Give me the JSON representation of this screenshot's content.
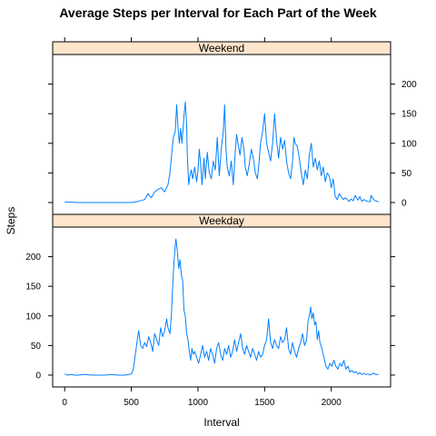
{
  "colors": {
    "strip_fill": "#FFE5CC",
    "line": "#0080FF",
    "frame": "#000000"
  },
  "chart_data": {
    "type": "line",
    "title": "Average Steps per Interval for Each Part of the Week",
    "xlabel": "Interval",
    "ylabel": "Steps",
    "xlim": [
      -90,
      2445
    ],
    "ylim": [
      -20,
      250
    ],
    "x_ticks": [
      0,
      500,
      1000,
      1500,
      2000
    ],
    "y_ticks": [
      0,
      50,
      100,
      150,
      200
    ],
    "layout": "two panels stacked, shared x axis; left y ticks on bottom panel, right y ticks on top panel",
    "grid": false,
    "panels": [
      {
        "name": "Weekend",
        "points": [
          [
            0,
            1
          ],
          [
            100,
            0
          ],
          [
            200,
            0
          ],
          [
            300,
            0
          ],
          [
            400,
            0
          ],
          [
            500,
            0
          ],
          [
            550,
            2
          ],
          [
            600,
            5
          ],
          [
            625,
            15
          ],
          [
            650,
            8
          ],
          [
            675,
            18
          ],
          [
            700,
            22
          ],
          [
            725,
            25
          ],
          [
            750,
            18
          ],
          [
            775,
            30
          ],
          [
            790,
            50
          ],
          [
            800,
            75
          ],
          [
            815,
            110
          ],
          [
            830,
            120
          ],
          [
            840,
            165
          ],
          [
            850,
            130
          ],
          [
            860,
            100
          ],
          [
            870,
            125
          ],
          [
            880,
            100
          ],
          [
            895,
            145
          ],
          [
            905,
            170
          ],
          [
            915,
            130
          ],
          [
            920,
            80
          ],
          [
            930,
            30
          ],
          [
            940,
            45
          ],
          [
            950,
            55
          ],
          [
            960,
            40
          ],
          [
            975,
            60
          ],
          [
            990,
            35
          ],
          [
            1000,
            55
          ],
          [
            1010,
            90
          ],
          [
            1020,
            65
          ],
          [
            1030,
            30
          ],
          [
            1045,
            75
          ],
          [
            1055,
            40
          ],
          [
            1070,
            85
          ],
          [
            1085,
            50
          ],
          [
            1100,
            40
          ],
          [
            1115,
            70
          ],
          [
            1130,
            55
          ],
          [
            1145,
            110
          ],
          [
            1160,
            45
          ],
          [
            1175,
            90
          ],
          [
            1190,
            120
          ],
          [
            1200,
            165
          ],
          [
            1210,
            90
          ],
          [
            1220,
            60
          ],
          [
            1235,
            45
          ],
          [
            1250,
            70
          ],
          [
            1265,
            30
          ],
          [
            1280,
            85
          ],
          [
            1290,
            115
          ],
          [
            1300,
            100
          ],
          [
            1315,
            80
          ],
          [
            1330,
            110
          ],
          [
            1345,
            90
          ],
          [
            1355,
            60
          ],
          [
            1370,
            45
          ],
          [
            1385,
            65
          ],
          [
            1400,
            90
          ],
          [
            1415,
            75
          ],
          [
            1430,
            50
          ],
          [
            1445,
            40
          ],
          [
            1455,
            60
          ],
          [
            1470,
            100
          ],
          [
            1485,
            120
          ],
          [
            1500,
            150
          ],
          [
            1515,
            100
          ],
          [
            1530,
            85
          ],
          [
            1545,
            70
          ],
          [
            1560,
            100
          ],
          [
            1575,
            150
          ],
          [
            1590,
            105
          ],
          [
            1605,
            75
          ],
          [
            1620,
            110
          ],
          [
            1635,
            90
          ],
          [
            1650,
            105
          ],
          [
            1665,
            70
          ],
          [
            1680,
            50
          ],
          [
            1695,
            40
          ],
          [
            1710,
            70
          ],
          [
            1720,
            110
          ],
          [
            1730,
            100
          ],
          [
            1745,
            95
          ],
          [
            1760,
            75
          ],
          [
            1775,
            50
          ],
          [
            1790,
            30
          ],
          [
            1805,
            55
          ],
          [
            1820,
            40
          ],
          [
            1835,
            80
          ],
          [
            1850,
            100
          ],
          [
            1865,
            60
          ],
          [
            1880,
            75
          ],
          [
            1895,
            55
          ],
          [
            1910,
            70
          ],
          [
            1925,
            45
          ],
          [
            1940,
            60
          ],
          [
            1955,
            35
          ],
          [
            1970,
            50
          ],
          [
            1985,
            45
          ],
          [
            2000,
            25
          ],
          [
            2015,
            40
          ],
          [
            2030,
            10
          ],
          [
            2045,
            5
          ],
          [
            2060,
            15
          ],
          [
            2075,
            10
          ],
          [
            2090,
            5
          ],
          [
            2105,
            8
          ],
          [
            2120,
            5
          ],
          [
            2135,
            2
          ],
          [
            2150,
            6
          ],
          [
            2165,
            3
          ],
          [
            2180,
            12
          ],
          [
            2200,
            4
          ],
          [
            2215,
            10
          ],
          [
            2230,
            2
          ],
          [
            2245,
            5
          ],
          [
            2260,
            3
          ],
          [
            2275,
            2
          ],
          [
            2290,
            1
          ],
          [
            2300,
            12
          ],
          [
            2315,
            6
          ],
          [
            2330,
            3
          ],
          [
            2345,
            2
          ],
          [
            2355,
            1
          ]
        ]
      },
      {
        "name": "Weekday",
        "points": [
          [
            0,
            2
          ],
          [
            25,
            0
          ],
          [
            50,
            1
          ],
          [
            75,
            0
          ],
          [
            100,
            0
          ],
          [
            150,
            1
          ],
          [
            200,
            0
          ],
          [
            250,
            0
          ],
          [
            300,
            0
          ],
          [
            350,
            1
          ],
          [
            400,
            0
          ],
          [
            450,
            0
          ],
          [
            500,
            2
          ],
          [
            515,
            10
          ],
          [
            530,
            35
          ],
          [
            545,
            60
          ],
          [
            555,
            75
          ],
          [
            570,
            50
          ],
          [
            585,
            45
          ],
          [
            600,
            55
          ],
          [
            615,
            48
          ],
          [
            630,
            65
          ],
          [
            645,
            55
          ],
          [
            660,
            40
          ],
          [
            675,
            70
          ],
          [
            690,
            60
          ],
          [
            705,
            50
          ],
          [
            720,
            80
          ],
          [
            735,
            65
          ],
          [
            750,
            75
          ],
          [
            765,
            95
          ],
          [
            775,
            80
          ],
          [
            790,
            70
          ],
          [
            800,
            100
          ],
          [
            810,
            150
          ],
          [
            820,
            190
          ],
          [
            830,
            220
          ],
          [
            835,
            230
          ],
          [
            845,
            210
          ],
          [
            855,
            180
          ],
          [
            865,
            195
          ],
          [
            875,
            170
          ],
          [
            885,
            160
          ],
          [
            895,
            110
          ],
          [
            905,
            100
          ],
          [
            915,
            70
          ],
          [
            925,
            60
          ],
          [
            935,
            40
          ],
          [
            945,
            25
          ],
          [
            955,
            45
          ],
          [
            965,
            35
          ],
          [
            975,
            40
          ],
          [
            990,
            30
          ],
          [
            1005,
            20
          ],
          [
            1020,
            35
          ],
          [
            1035,
            50
          ],
          [
            1050,
            30
          ],
          [
            1065,
            40
          ],
          [
            1080,
            25
          ],
          [
            1095,
            45
          ],
          [
            1110,
            35
          ],
          [
            1125,
            20
          ],
          [
            1140,
            45
          ],
          [
            1155,
            55
          ],
          [
            1170,
            35
          ],
          [
            1185,
            25
          ],
          [
            1200,
            45
          ],
          [
            1215,
            35
          ],
          [
            1230,
            50
          ],
          [
            1245,
            30
          ],
          [
            1260,
            40
          ],
          [
            1275,
            60
          ],
          [
            1290,
            40
          ],
          [
            1305,
            55
          ],
          [
            1320,
            70
          ],
          [
            1335,
            45
          ],
          [
            1350,
            35
          ],
          [
            1365,
            50
          ],
          [
            1380,
            40
          ],
          [
            1395,
            30
          ],
          [
            1410,
            45
          ],
          [
            1425,
            35
          ],
          [
            1440,
            25
          ],
          [
            1455,
            40
          ],
          [
            1470,
            30
          ],
          [
            1485,
            35
          ],
          [
            1500,
            50
          ],
          [
            1515,
            60
          ],
          [
            1530,
            95
          ],
          [
            1545,
            55
          ],
          [
            1560,
            45
          ],
          [
            1575,
            60
          ],
          [
            1590,
            50
          ],
          [
            1605,
            45
          ],
          [
            1620,
            65
          ],
          [
            1635,
            55
          ],
          [
            1650,
            60
          ],
          [
            1665,
            80
          ],
          [
            1680,
            45
          ],
          [
            1695,
            35
          ],
          [
            1710,
            55
          ],
          [
            1725,
            40
          ],
          [
            1740,
            30
          ],
          [
            1755,
            45
          ],
          [
            1770,
            55
          ],
          [
            1785,
            70
          ],
          [
            1800,
            50
          ],
          [
            1815,
            60
          ],
          [
            1825,
            90
          ],
          [
            1835,
            100
          ],
          [
            1845,
            115
          ],
          [
            1855,
            95
          ],
          [
            1865,
            105
          ],
          [
            1875,
            85
          ],
          [
            1885,
            90
          ],
          [
            1895,
            60
          ],
          [
            1905,
            75
          ],
          [
            1915,
            55
          ],
          [
            1930,
            45
          ],
          [
            1945,
            30
          ],
          [
            1960,
            15
          ],
          [
            1975,
            10
          ],
          [
            1990,
            20
          ],
          [
            2005,
            15
          ],
          [
            2020,
            25
          ],
          [
            2035,
            15
          ],
          [
            2050,
            10
          ],
          [
            2065,
            20
          ],
          [
            2080,
            15
          ],
          [
            2095,
            25
          ],
          [
            2110,
            10
          ],
          [
            2125,
            15
          ],
          [
            2140,
            5
          ],
          [
            2155,
            8
          ],
          [
            2170,
            4
          ],
          [
            2185,
            6
          ],
          [
            2200,
            2
          ],
          [
            2215,
            4
          ],
          [
            2230,
            1
          ],
          [
            2245,
            3
          ],
          [
            2260,
            1
          ],
          [
            2275,
            2
          ],
          [
            2290,
            0
          ],
          [
            2305,
            2
          ],
          [
            2320,
            3
          ],
          [
            2335,
            1
          ],
          [
            2355,
            1
          ]
        ]
      }
    ]
  }
}
